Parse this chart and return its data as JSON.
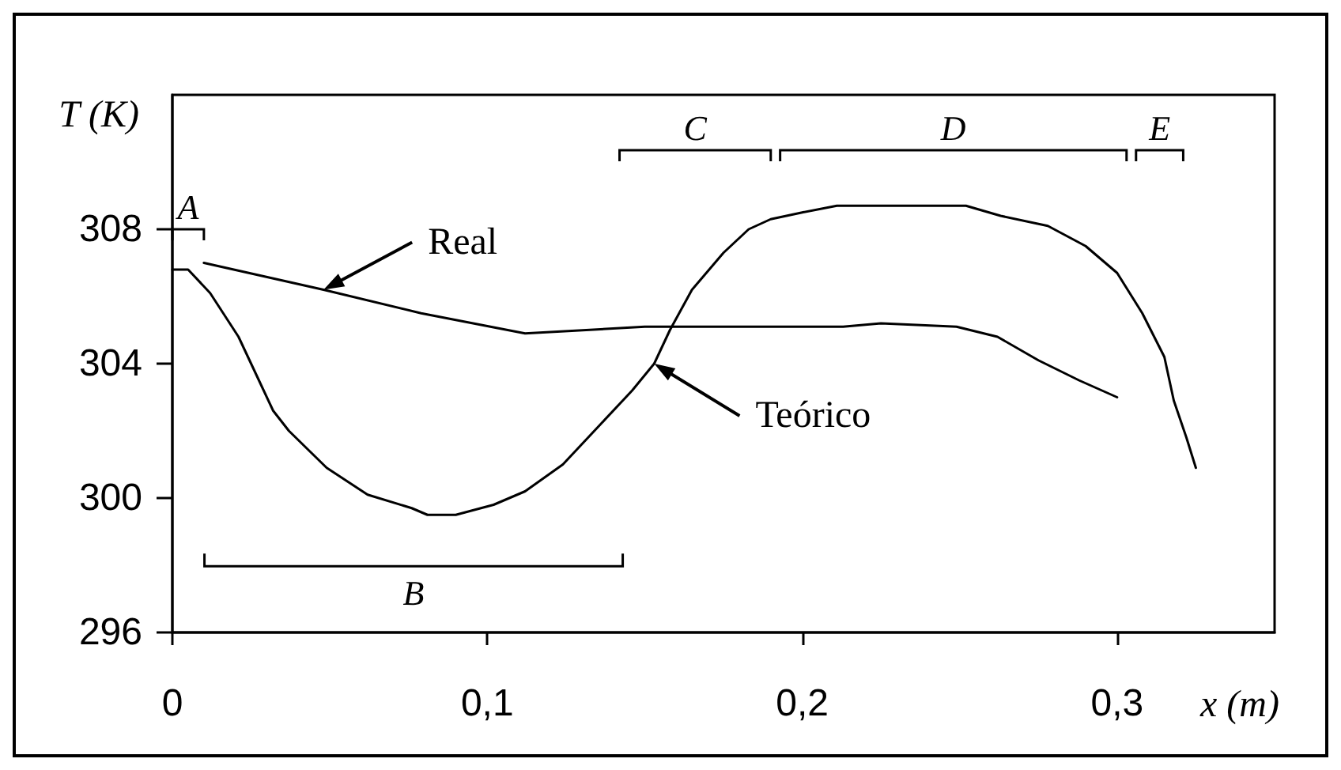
{
  "chart_data": {
    "type": "line",
    "xlabel": "x (m)",
    "ylabel": "T (K)",
    "xlim": [
      0,
      0.35
    ],
    "xticks": [
      0,
      {
        "value": 0.1,
        "label": "0,1"
      },
      {
        "value": 0.2,
        "label": "0,2"
      },
      {
        "value": 0.3,
        "label": "0,3"
      }
    ],
    "ylim": [
      296,
      312
    ],
    "yticks": [
      296,
      300,
      304,
      308
    ],
    "grid": false,
    "marker": "none",
    "series": [
      {
        "color": "#000000",
        "x": [
          0.01,
          0.048,
          0.079,
          0.112,
          0.15,
          0.213,
          0.225,
          0.249,
          0.262,
          0.275,
          0.288,
          0.3
        ],
        "values": [
          307.0,
          306.2,
          305.5,
          304.9,
          305.1,
          305.1,
          305.2,
          305.1,
          304.8,
          304.1,
          303.5,
          303.0
        ]
      },
      {
        "color": "#000000",
        "x": [
          0,
          0.005,
          0.012,
          0.021,
          0.027,
          0.032,
          0.037,
          0.049,
          0.062,
          0.076,
          0.081,
          0.09,
          0.102,
          0.112,
          0.124,
          0.136,
          0.146,
          0.153,
          0.158,
          0.165,
          0.175,
          0.183,
          0.19,
          0.2,
          0.211,
          0.252,
          0.263,
          0.278,
          0.29,
          0.3,
          0.308,
          0.315,
          0.318,
          0.322,
          0.325
        ],
        "values": [
          306.8,
          306.8,
          306.1,
          304.8,
          303.6,
          302.6,
          302.0,
          300.9,
          300.1,
          299.7,
          299.5,
          299.5,
          299.8,
          300.2,
          301.0,
          302.2,
          303.2,
          304.0,
          305.0,
          306.2,
          307.3,
          308.0,
          308.3,
          308.5,
          308.7,
          308.7,
          308.4,
          308.1,
          307.5,
          306.7,
          305.5,
          304.2,
          302.9,
          301.8,
          300.9
        ]
      }
    ],
    "annotations": [
      {
        "text": "Real",
        "x": 0.048,
        "y": 306.2
      },
      {
        "text": "Teórico",
        "x": 0.153,
        "y": 304.0
      },
      "A",
      "B",
      "C",
      "D",
      "E"
    ]
  }
}
